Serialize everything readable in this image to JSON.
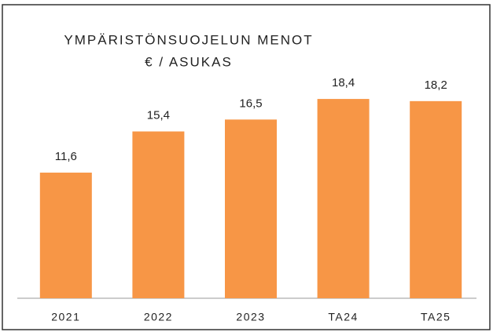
{
  "chart_data": {
    "type": "bar",
    "title": "YMPÄRISTÖNSUOJELUN MENOT",
    "subtitle": "€ / ASUKAS",
    "categories": [
      "2021",
      "2022",
      "2023",
      "TA24",
      "TA25"
    ],
    "values": [
      11.6,
      15.4,
      16.5,
      18.4,
      18.2
    ],
    "value_labels": [
      "11,6",
      "15,4",
      "16,5",
      "18,4",
      "18,2"
    ],
    "color": "#f79646",
    "ylim": [
      0,
      20
    ]
  }
}
